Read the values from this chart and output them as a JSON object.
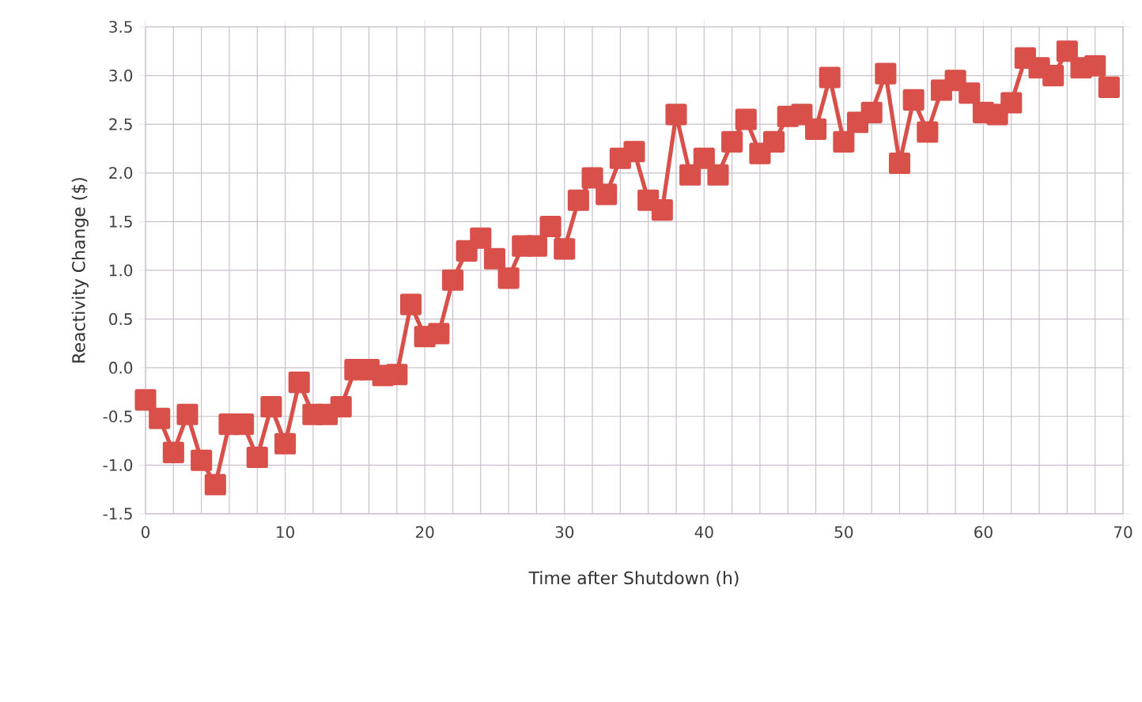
{
  "chart_data": {
    "type": "line",
    "xlabel": "Time after Shutdown (h)",
    "ylabel": "Reactivity Change ($)",
    "x": [
      0,
      1,
      2,
      3,
      4,
      5,
      6,
      7,
      8,
      9,
      10,
      11,
      12,
      13,
      14,
      15,
      16,
      17,
      18,
      19,
      20,
      21,
      22,
      23,
      24,
      25,
      26,
      27,
      28,
      29,
      30,
      31,
      32,
      33,
      34,
      35,
      36,
      37,
      38,
      39,
      40,
      41,
      42,
      43,
      44,
      45,
      46,
      47,
      48,
      49,
      50,
      51,
      52,
      53,
      54,
      55,
      56,
      57,
      58,
      59,
      60,
      61,
      62,
      63,
      64,
      65,
      66,
      67,
      68,
      69
    ],
    "series": [
      {
        "color": "#d9504a",
        "values": [
          -0.33,
          -0.52,
          -0.87,
          -0.48,
          -0.95,
          -1.2,
          -0.58,
          -0.58,
          -0.92,
          -0.4,
          -0.78,
          -0.15,
          -0.48,
          -0.48,
          -0.4,
          -0.02,
          -0.02,
          -0.08,
          -0.07,
          0.65,
          0.32,
          0.35,
          0.9,
          1.2,
          1.33,
          1.12,
          0.92,
          1.25,
          1.25,
          1.45,
          1.22,
          1.72,
          1.95,
          1.78,
          2.15,
          2.22,
          1.72,
          1.62,
          2.6,
          1.98,
          2.15,
          1.98,
          2.32,
          2.55,
          2.2,
          2.32,
          2.58,
          2.6,
          2.45,
          2.98,
          2.32,
          2.52,
          2.62,
          3.02,
          2.1,
          2.75,
          2.42,
          2.85,
          2.95,
          2.82,
          2.62,
          2.6,
          2.72,
          3.18,
          3.08,
          3.0,
          3.25,
          3.08,
          3.1,
          2.88
        ]
      }
    ],
    "xlim": [
      0,
      70
    ],
    "ylim": [
      -1.5,
      3.5
    ],
    "xticks": [
      0,
      10,
      20,
      30,
      40,
      50,
      60,
      70
    ],
    "yticks": [
      {
        "value": -1.5,
        "label": "-1.5"
      },
      {
        "value": -1.0,
        "label": "-1.0"
      },
      {
        "value": -0.5,
        "label": "-0.5"
      },
      {
        "value": 0.0,
        "label": "0.0"
      },
      {
        "value": 0.5,
        "label": "0.5"
      },
      {
        "value": 1.0,
        "label": "1.0"
      },
      {
        "value": 1.5,
        "label": "1.5"
      },
      {
        "value": 2.0,
        "label": "2.0"
      },
      {
        "value": 2.5,
        "label": "2.5"
      },
      {
        "value": 3.0,
        "label": "3.0"
      },
      {
        "value": 3.5,
        "label": "3.5"
      }
    ],
    "grid": true,
    "marker": "square",
    "line_style": "solid"
  }
}
